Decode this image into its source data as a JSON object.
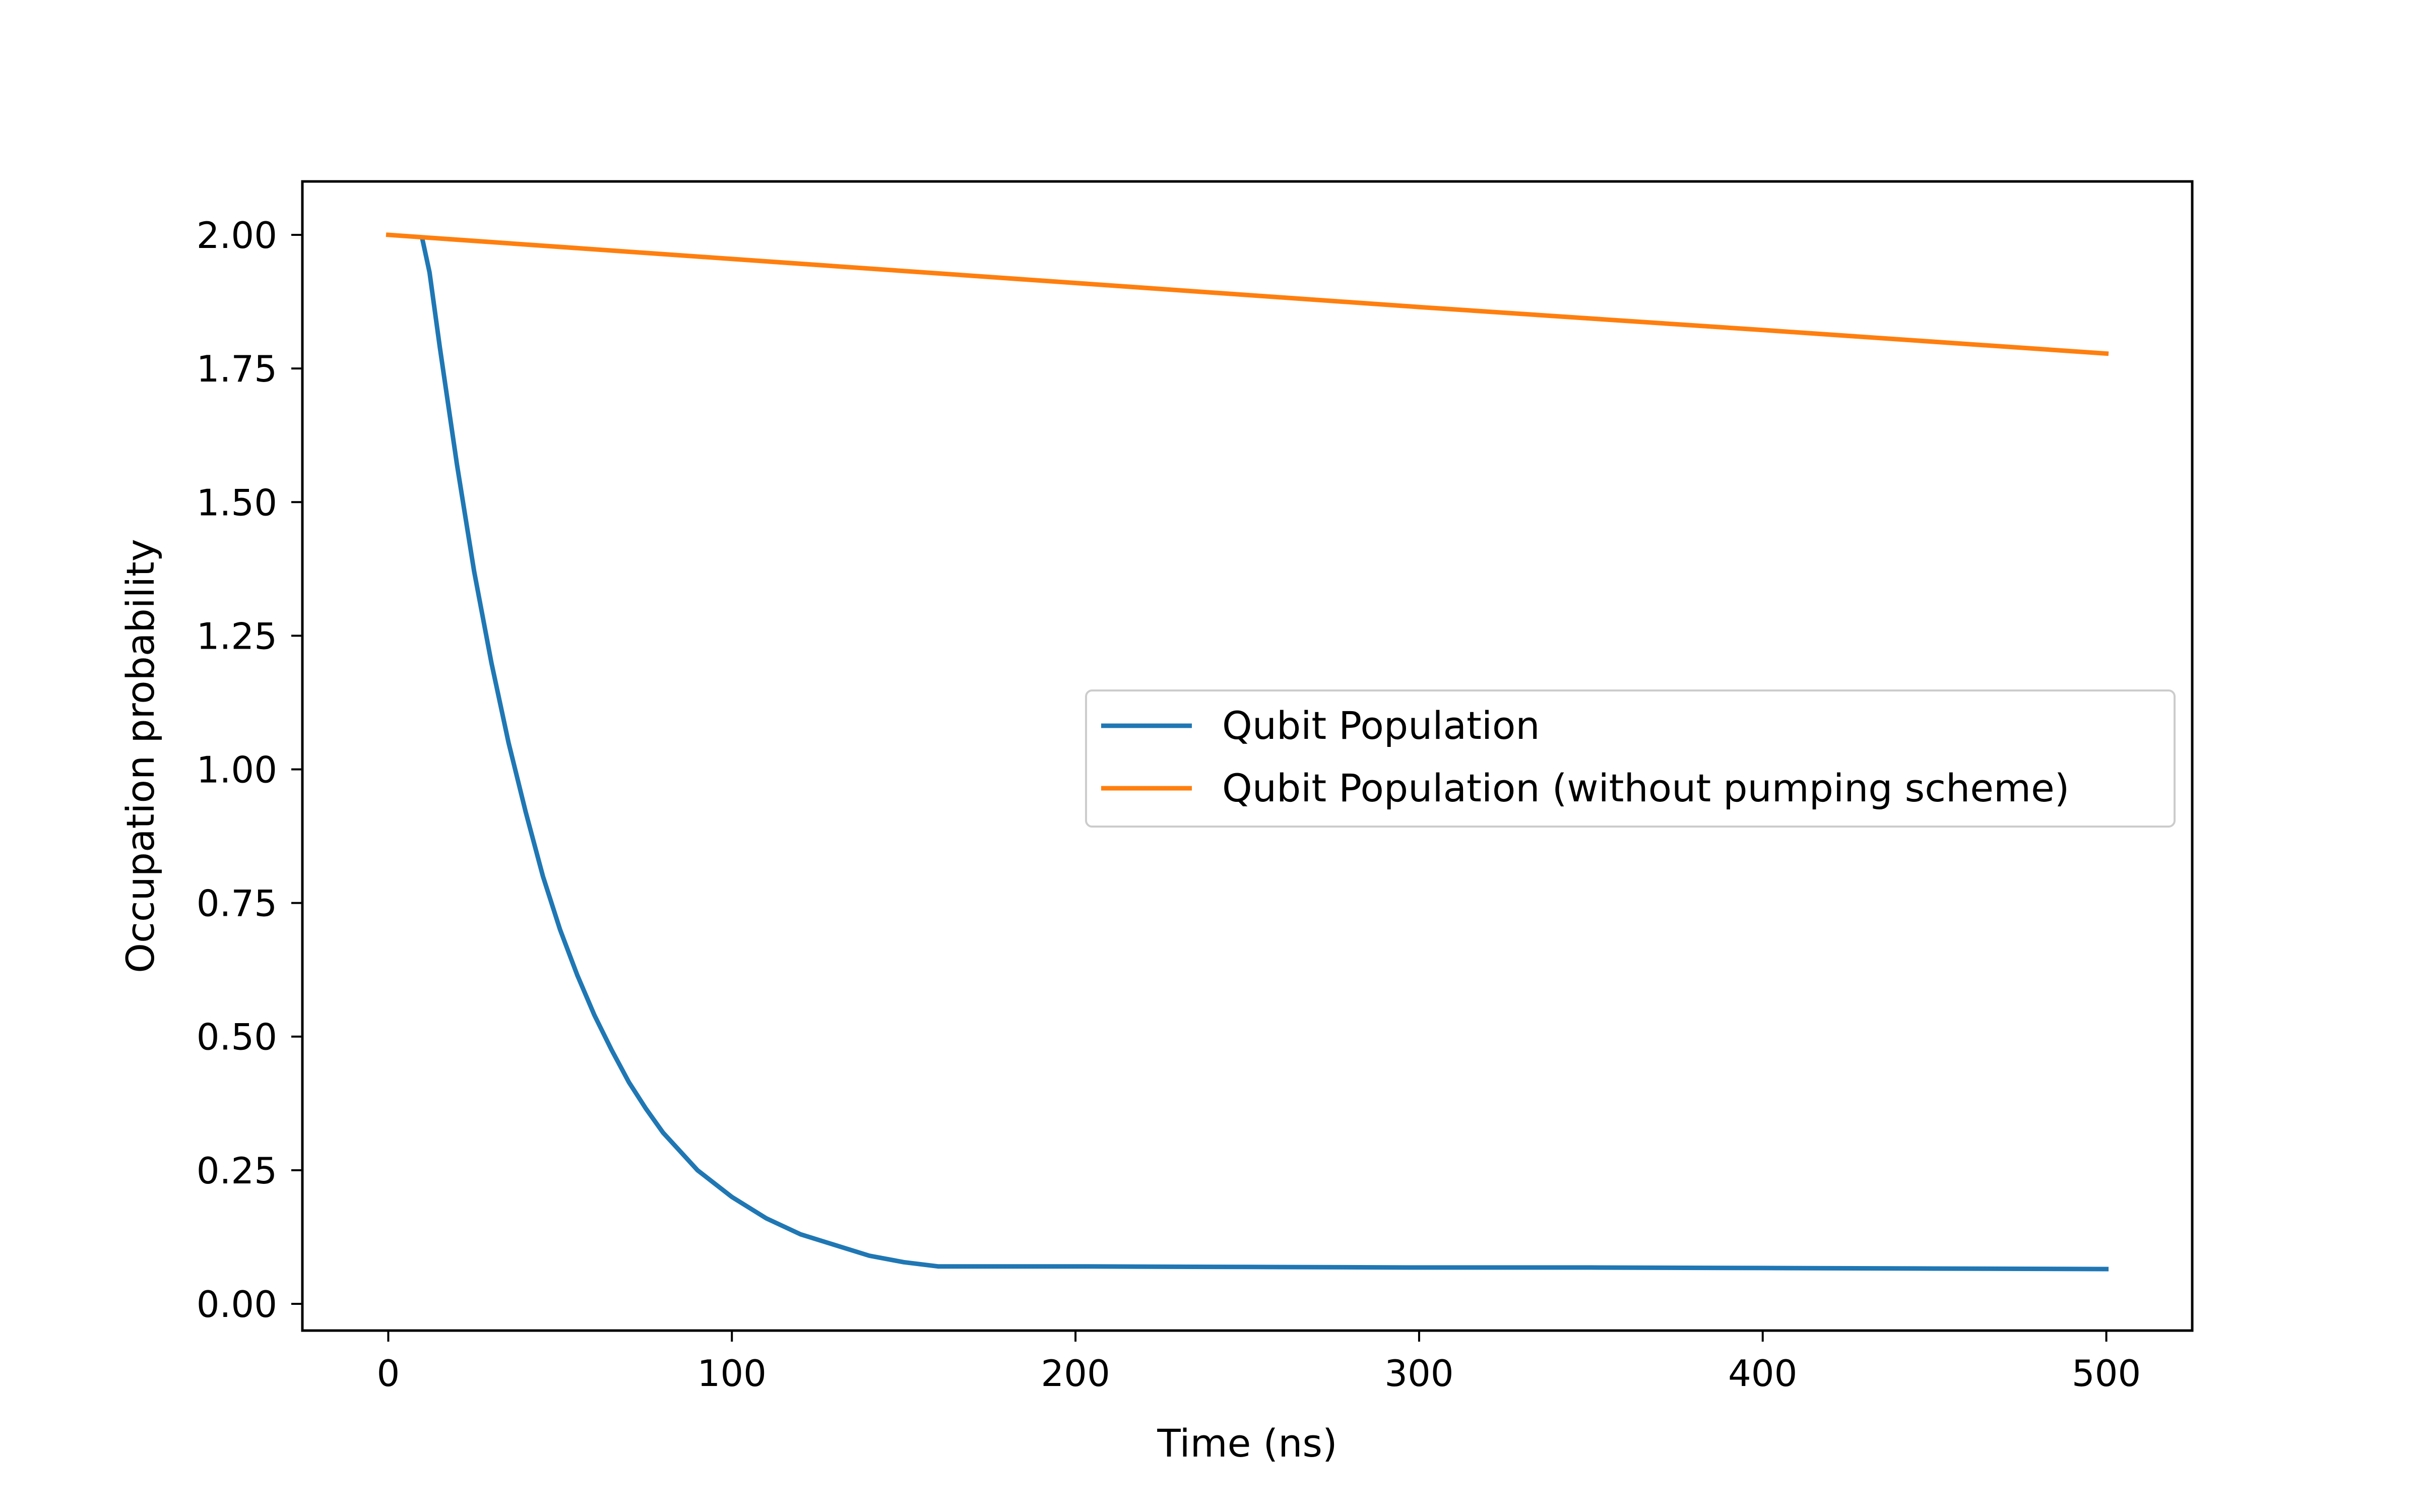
{
  "chart_data": {
    "type": "line",
    "title": "",
    "xlabel": "Time (ns)",
    "ylabel": "Occupation probability",
    "xlim": [
      -25,
      525
    ],
    "ylim": [
      -0.05,
      2.1
    ],
    "xticks": [
      0,
      100,
      200,
      300,
      400,
      500
    ],
    "xtick_labels": [
      "0",
      "100",
      "200",
      "300",
      "400",
      "500"
    ],
    "yticks": [
      0.0,
      0.25,
      0.5,
      0.75,
      1.0,
      1.25,
      1.5,
      1.75,
      2.0
    ],
    "ytick_labels": [
      "0.00",
      "0.25",
      "0.50",
      "0.75",
      "1.00",
      "1.25",
      "1.50",
      "1.75",
      "2.00"
    ],
    "grid": false,
    "legend_position": "center-right",
    "series": [
      {
        "name": "Qubit Population",
        "color": "#1f77b4",
        "x": [
          10,
          12,
          15,
          20,
          25,
          30,
          35,
          40,
          45,
          50,
          55,
          60,
          65,
          70,
          75,
          80,
          85,
          90,
          95,
          100,
          110,
          120,
          130,
          140,
          150,
          160,
          200,
          250,
          300,
          350,
          400,
          450,
          500
        ],
        "y": [
          1.99,
          1.93,
          1.79,
          1.57,
          1.37,
          1.2,
          1.05,
          0.92,
          0.8,
          0.7,
          0.615,
          0.54,
          0.475,
          0.415,
          0.365,
          0.32,
          0.285,
          0.25,
          0.225,
          0.2,
          0.16,
          0.13,
          0.11,
          0.09,
          0.078,
          0.07,
          0.07,
          0.069,
          0.068,
          0.068,
          0.067,
          0.066,
          0.065
        ]
      },
      {
        "name": "Qubit Population (without pumping scheme)",
        "color": "#ff7f0e",
        "x": [
          0,
          100,
          200,
          300,
          400,
          500
        ],
        "y": [
          2.0,
          1.955,
          1.91,
          1.865,
          1.822,
          1.778
        ]
      }
    ]
  }
}
